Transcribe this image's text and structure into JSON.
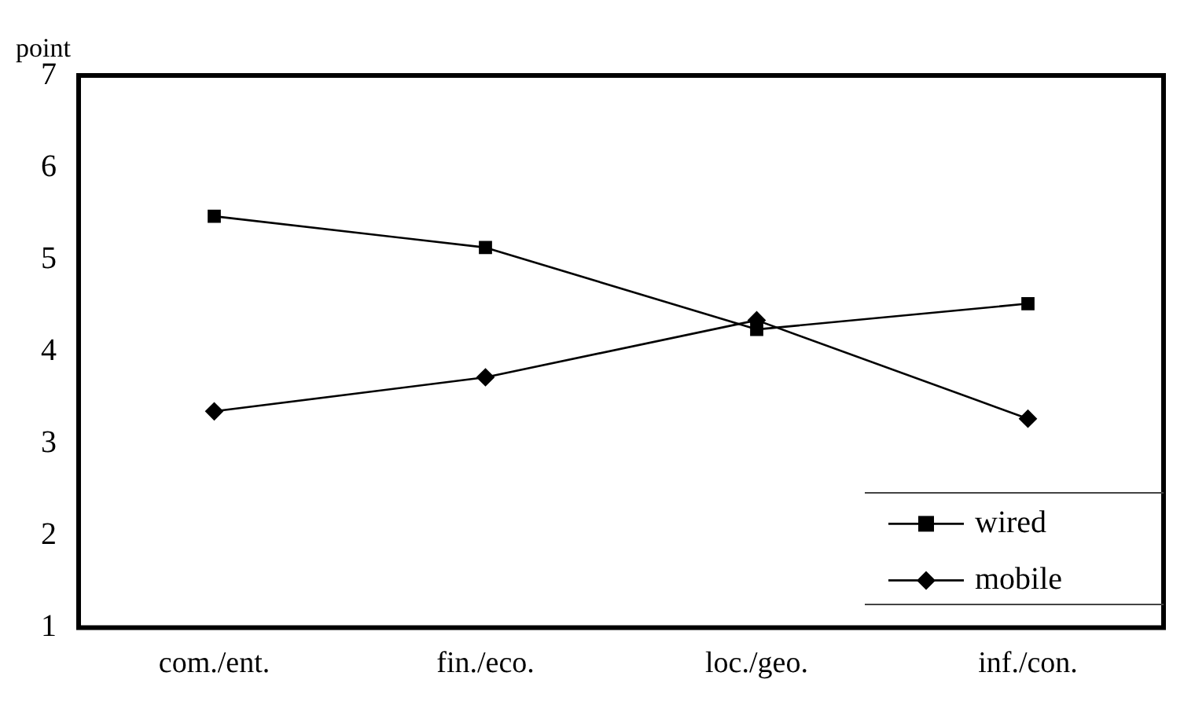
{
  "chart_data": {
    "type": "line",
    "ylabel": "point",
    "categories": [
      "com./ent.",
      "fin./eco.",
      "loc./geo.",
      "inf./con."
    ],
    "series": [
      {
        "name": "wired",
        "color": "#000000",
        "marker": "square",
        "values": [
          5.47,
          5.13,
          4.24,
          4.52
        ]
      },
      {
        "name": "mobile",
        "color": "#000000",
        "marker": "diamond",
        "values": [
          3.35,
          3.72,
          4.34,
          3.27
        ]
      }
    ],
    "ylim": [
      1,
      7
    ],
    "yticks": [
      1,
      2,
      3,
      4,
      5,
      6,
      7
    ],
    "grid": false,
    "legend": "bottom right",
    "line_style": "solid"
  }
}
